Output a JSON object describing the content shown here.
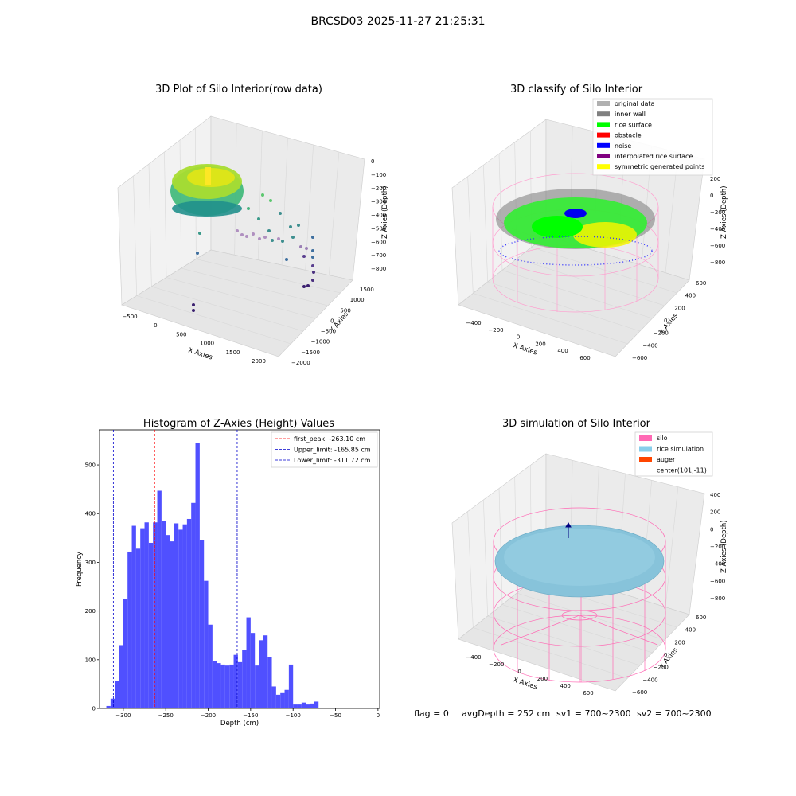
{
  "figure": {
    "title": "BRCSD03 2025-11-27 21:25:31",
    "footer": {
      "flag": "flag = 0",
      "avg": "avgDepth = 252 cm",
      "sv1": "sv1 = 700~2300",
      "sv2": "sv2 = 700~2300"
    }
  },
  "raw_plot": {
    "title": "3D Plot of Silo Interior(row data)",
    "xlabel": "X Axies",
    "ylabel": "Y Axies",
    "zlabel": "Z Axies (Depth)",
    "xticks": [
      "−500",
      "0",
      "500",
      "1000",
      "1500",
      "2000"
    ],
    "yticks": [
      "1500",
      "1000",
      "500",
      "0",
      "−500",
      "−1000",
      "−1500",
      "−2000"
    ],
    "zticks": [
      "0",
      "−100",
      "−200",
      "−300",
      "−400",
      "−500",
      "−600",
      "−700",
      "−800"
    ]
  },
  "classify_plot": {
    "title": "3D classify of Silo Interior",
    "legend": [
      {
        "label": "original data",
        "color": "#b0b0b0"
      },
      {
        "label": "inner wall",
        "color": "#808080"
      },
      {
        "label": "rice surface",
        "color": "#00ff00"
      },
      {
        "label": "obstacle",
        "color": "#ff0000"
      },
      {
        "label": "noise",
        "color": "#0000ff"
      },
      {
        "label": "interpolated rice surface",
        "color": "#800080"
      },
      {
        "label": "symmetric generated points",
        "color": "#ffff00"
      }
    ],
    "xlabel": "X Axies",
    "ylabel": "Y Axies",
    "zlabel": "Z Axies (Depth)",
    "xticks": [
      "−400",
      "−200",
      "0",
      "200",
      "400",
      "600"
    ],
    "yticks": [
      "600",
      "400",
      "200",
      "0",
      "−200",
      "−400",
      "−600"
    ],
    "zticks": [
      "200",
      "0",
      "−200",
      "−400",
      "−600",
      "−800"
    ]
  },
  "sim_plot": {
    "title": "3D simulation of Silo Interior",
    "legend": [
      {
        "label": "silo",
        "color": "#ff69b4"
      },
      {
        "label": "rice simulation",
        "color": "#87ceeb"
      },
      {
        "label": "auger",
        "color": "#ff4500"
      },
      {
        "label": "center(101,-11)",
        "color": ""
      }
    ],
    "xlabel": "X Axies",
    "ylabel": "Y Axies",
    "zlabel": "Z Axies (Depth)",
    "xticks": [
      "−400",
      "−200",
      "0",
      "200",
      "400",
      "600"
    ],
    "yticks": [
      "600",
      "400",
      "200",
      "0",
      "−200",
      "−400",
      "−600"
    ],
    "zticks": [
      "400",
      "200",
      "0",
      "−200",
      "−400",
      "−600",
      "−800"
    ]
  },
  "chart_data": [
    {
      "type": "histogram",
      "title": "Histogram of Z-Axies (Height) Values",
      "xlabel": "Depth (cm)",
      "ylabel": "Frequency",
      "xlim": [
        -328,
        2
      ],
      "ylim": [
        0,
        572
      ],
      "xticks": [
        "−300",
        "−250",
        "−200",
        "−150",
        "−100",
        "−50",
        "0"
      ],
      "xtick_values": [
        -300,
        -250,
        -200,
        -150,
        -100,
        -50,
        0
      ],
      "yticks": [
        "0",
        "100",
        "200",
        "300",
        "400",
        "500"
      ],
      "ytick_values": [
        0,
        100,
        200,
        300,
        400,
        500
      ],
      "bar_color": "#5050ff",
      "bin_edges_start": -320,
      "bin_width": 5,
      "counts": [
        5,
        20,
        57,
        130,
        225,
        322,
        375,
        328,
        370,
        382,
        340,
        382,
        447,
        385,
        356,
        343,
        380,
        367,
        378,
        389,
        422,
        545,
        346,
        262,
        172,
        97,
        93,
        90,
        88,
        90,
        110,
        95,
        120,
        187,
        155,
        88,
        140,
        150,
        105,
        45,
        28,
        33,
        38,
        90,
        8,
        8,
        12,
        8,
        10,
        14
      ],
      "lines": [
        {
          "label": "first_peak: -263.10 cm",
          "x": -263.1,
          "color": "#ff0000"
        },
        {
          "label": "Upper_limit: -165.85 cm",
          "x": -165.85,
          "color": "#0000cc"
        },
        {
          "label": "Lower_limit: -311.72 cm",
          "x": -311.72,
          "color": "#0000cc"
        }
      ],
      "legend_position": "top-right"
    }
  ]
}
